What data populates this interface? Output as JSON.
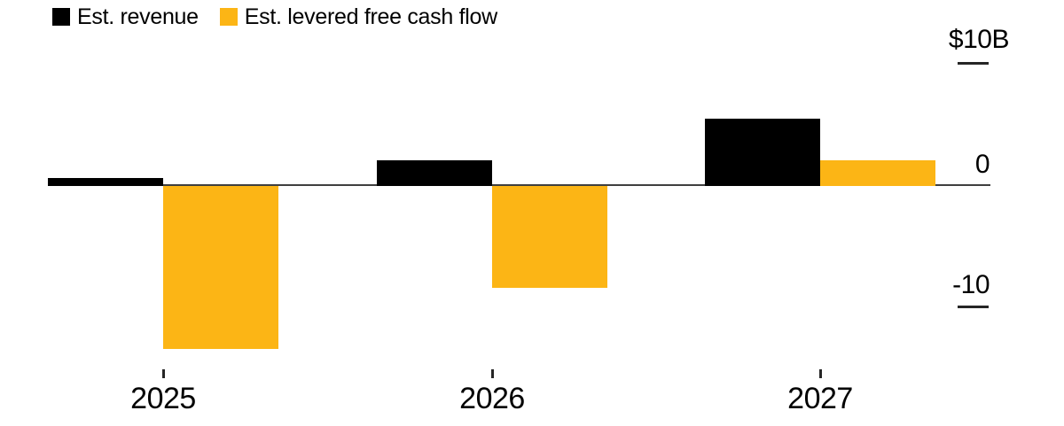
{
  "chart_data": {
    "type": "bar",
    "title": "",
    "categories": [
      "2025",
      "2026",
      "2027"
    ],
    "series": [
      {
        "name": "Est. revenue",
        "color": "#000000",
        "values": [
          0.65,
          2.1,
          5.5
        ]
      },
      {
        "name": "Est. levered free cash flow",
        "color": "#FCB515",
        "values": [
          -13.3,
          -8.3,
          2.1
        ]
      }
    ],
    "y_axis": {
      "unit": "$B",
      "ticks": [
        {
          "label": "$10B",
          "value": 10,
          "tick_line": true
        },
        {
          "label": "0",
          "value": 0,
          "tick_line": false
        },
        {
          "label": "-10",
          "value": -10,
          "tick_line": true
        }
      ],
      "ylim": [
        -15,
        11
      ]
    },
    "x_axis": {
      "tick_labels": [
        "2025",
        "2026",
        "2027"
      ]
    },
    "legend_position": "top-left",
    "grid": false
  },
  "colors": {
    "background": "#ffffff",
    "axis_line": "#3f3f3f",
    "tick_mark": "#262626",
    "text": "#000000",
    "revenue_bar": "#000000",
    "cash_flow_bar": "#FCB515"
  }
}
